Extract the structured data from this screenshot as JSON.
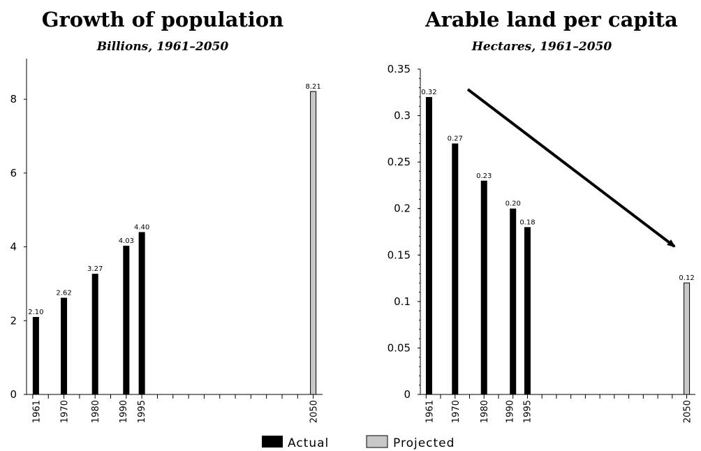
{
  "chart_data": [
    {
      "type": "bar",
      "title": "Growth of population",
      "subtitle": "Billions, 1961–2050",
      "x": [
        1961,
        1970,
        1980,
        1990,
        1995,
        2050
      ],
      "x_labels": [
        "1961",
        "1970",
        "1980",
        "1990",
        "1995",
        "2050"
      ],
      "series": [
        {
          "name": "Actual",
          "x": [
            1961,
            1970,
            1980,
            1990,
            1995
          ],
          "values": [
            2.1,
            2.62,
            3.27,
            4.03,
            4.4
          ],
          "labels": [
            "2.10",
            "2.62",
            "3.27",
            "4.03",
            "4.40"
          ]
        },
        {
          "name": "Projected",
          "x": [
            2050
          ],
          "values": [
            8.21
          ],
          "labels": [
            "8.21"
          ]
        }
      ],
      "yticks": [
        0,
        2,
        4,
        6,
        8
      ],
      "ytick_labels": [
        "0",
        "2",
        "4",
        "6",
        "8"
      ],
      "ylim": [
        0,
        9.1
      ],
      "xlim": [
        1958,
        2053
      ],
      "grid": false
    },
    {
      "type": "bar",
      "title": "Arable land per capita",
      "subtitle": "Hectares, 1961–2050",
      "x": [
        1961,
        1970,
        1980,
        1990,
        1995,
        2050
      ],
      "x_labels": [
        "1961",
        "1970",
        "1980",
        "1990",
        "1995",
        "2050"
      ],
      "series": [
        {
          "name": "Actual",
          "x": [
            1961,
            1970,
            1980,
            1990,
            1995
          ],
          "values": [
            0.32,
            0.27,
            0.23,
            0.2,
            0.18
          ],
          "labels": [
            "0.32",
            "0.27",
            "0.23",
            "0.20",
            "0.18"
          ]
        },
        {
          "name": "Projected",
          "x": [
            2050
          ],
          "values": [
            0.12
          ],
          "labels": [
            "0.12"
          ]
        }
      ],
      "yticks": [
        0,
        0.05,
        0.1,
        0.15,
        0.2,
        0.25,
        0.3,
        0.35
      ],
      "ytick_labels": [
        "0",
        "0.05",
        "0.1",
        "0.15",
        "0.2",
        "0.25",
        "0.3",
        "0.35"
      ],
      "ylim": [
        0,
        0.35
      ],
      "xlim": [
        1958,
        2053
      ],
      "grid": false,
      "annotations": [
        {
          "type": "arrow",
          "direction": "down-right",
          "meaning": "declining trend"
        }
      ]
    }
  ],
  "legend": {
    "items": [
      {
        "label": "Actual",
        "color": "#000000"
      },
      {
        "label": "Projected",
        "color": "#c8c8c8"
      }
    ],
    "placement": "bottom-center"
  },
  "colors": {
    "actual": "#000000",
    "projected": "#c8c8c8",
    "projected_border": "#000000"
  }
}
